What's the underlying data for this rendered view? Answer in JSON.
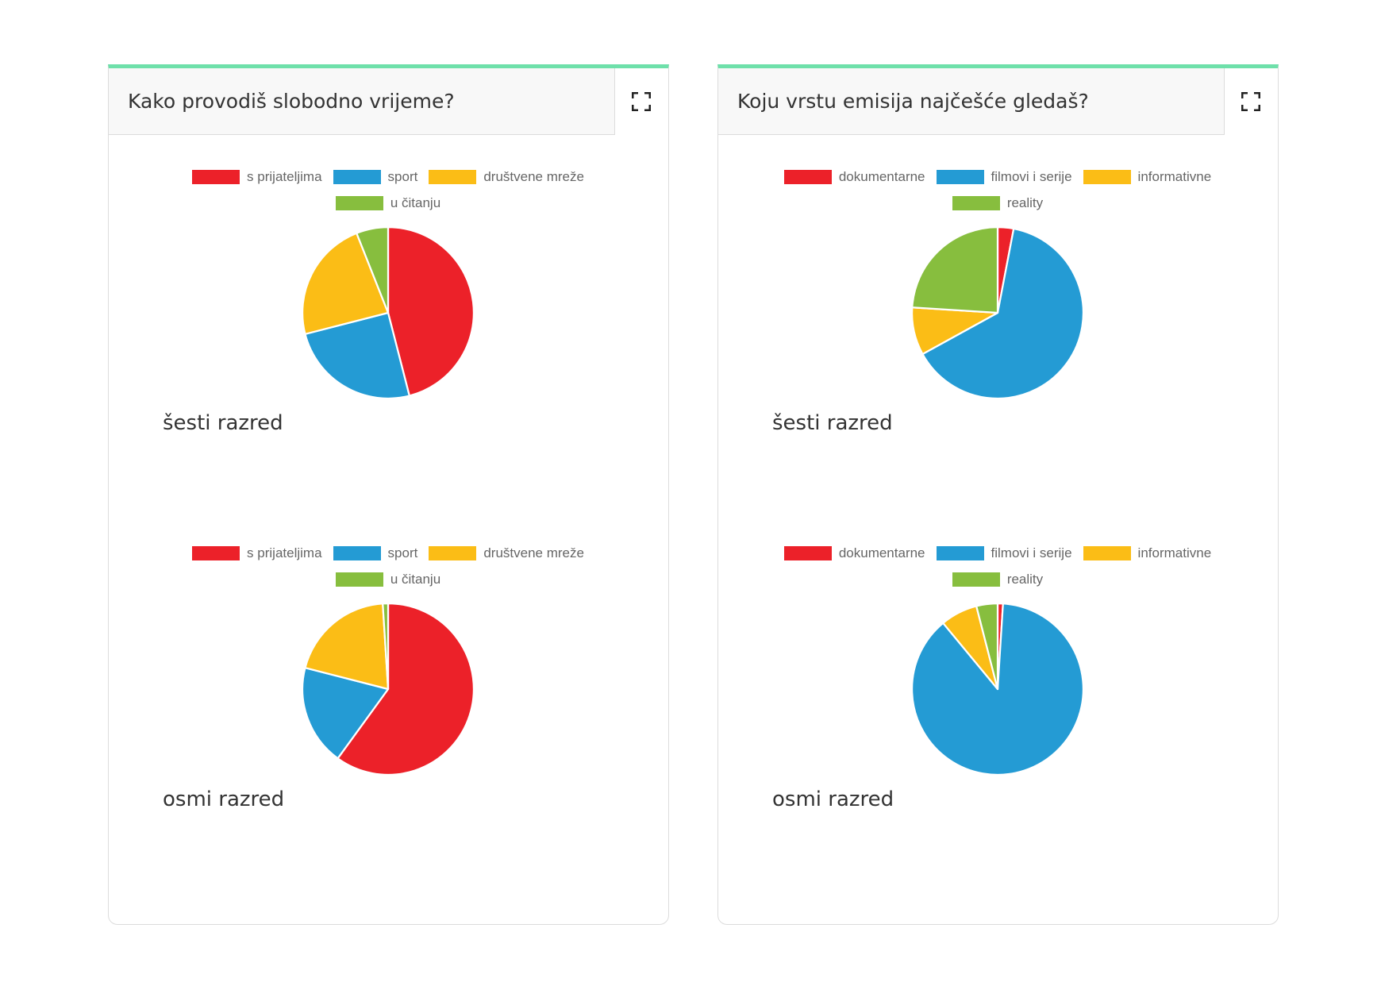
{
  "colors": {
    "red": "#ec2129",
    "blue": "#249bd4",
    "yellow": "#fbbd16",
    "green": "#87be3e",
    "accent": "#6ee0aa"
  },
  "cards": [
    {
      "title": "Kako provodiš slobodno vrijeme?",
      "expand_icon": "fullscreen-icon"
    },
    {
      "title": "Koju vrstu emisija najčešće gledaš?",
      "expand_icon": "fullscreen-icon"
    }
  ],
  "chart_data": [
    {
      "type": "pie",
      "caption": "šesti razred",
      "legend_position": "top",
      "categories": [
        "s prijateljima",
        "sport",
        "društvene mreže",
        "u čitanju"
      ],
      "colors": [
        "#ec2129",
        "#249bd4",
        "#fbbd16",
        "#87be3e"
      ],
      "values": [
        46,
        25,
        23,
        6
      ]
    },
    {
      "type": "pie",
      "caption": "osmi razred",
      "legend_position": "top",
      "categories": [
        "s prijateljima",
        "sport",
        "društvene mreže",
        "u čitanju"
      ],
      "colors": [
        "#ec2129",
        "#249bd4",
        "#fbbd16",
        "#87be3e"
      ],
      "values": [
        60,
        19,
        20,
        1
      ]
    },
    {
      "type": "pie",
      "caption": "šesti razred",
      "legend_position": "top",
      "categories": [
        "dokumentarne",
        "filmovi i serije",
        "informativne",
        "reality"
      ],
      "colors": [
        "#ec2129",
        "#249bd4",
        "#fbbd16",
        "#87be3e"
      ],
      "values": [
        3,
        64,
        9,
        24
      ]
    },
    {
      "type": "pie",
      "caption": "osmi razred",
      "legend_position": "top",
      "categories": [
        "dokumentarne",
        "filmovi i serije",
        "informativne",
        "reality"
      ],
      "colors": [
        "#ec2129",
        "#249bd4",
        "#fbbd16",
        "#87be3e"
      ],
      "values": [
        1,
        88,
        7,
        4
      ]
    }
  ]
}
